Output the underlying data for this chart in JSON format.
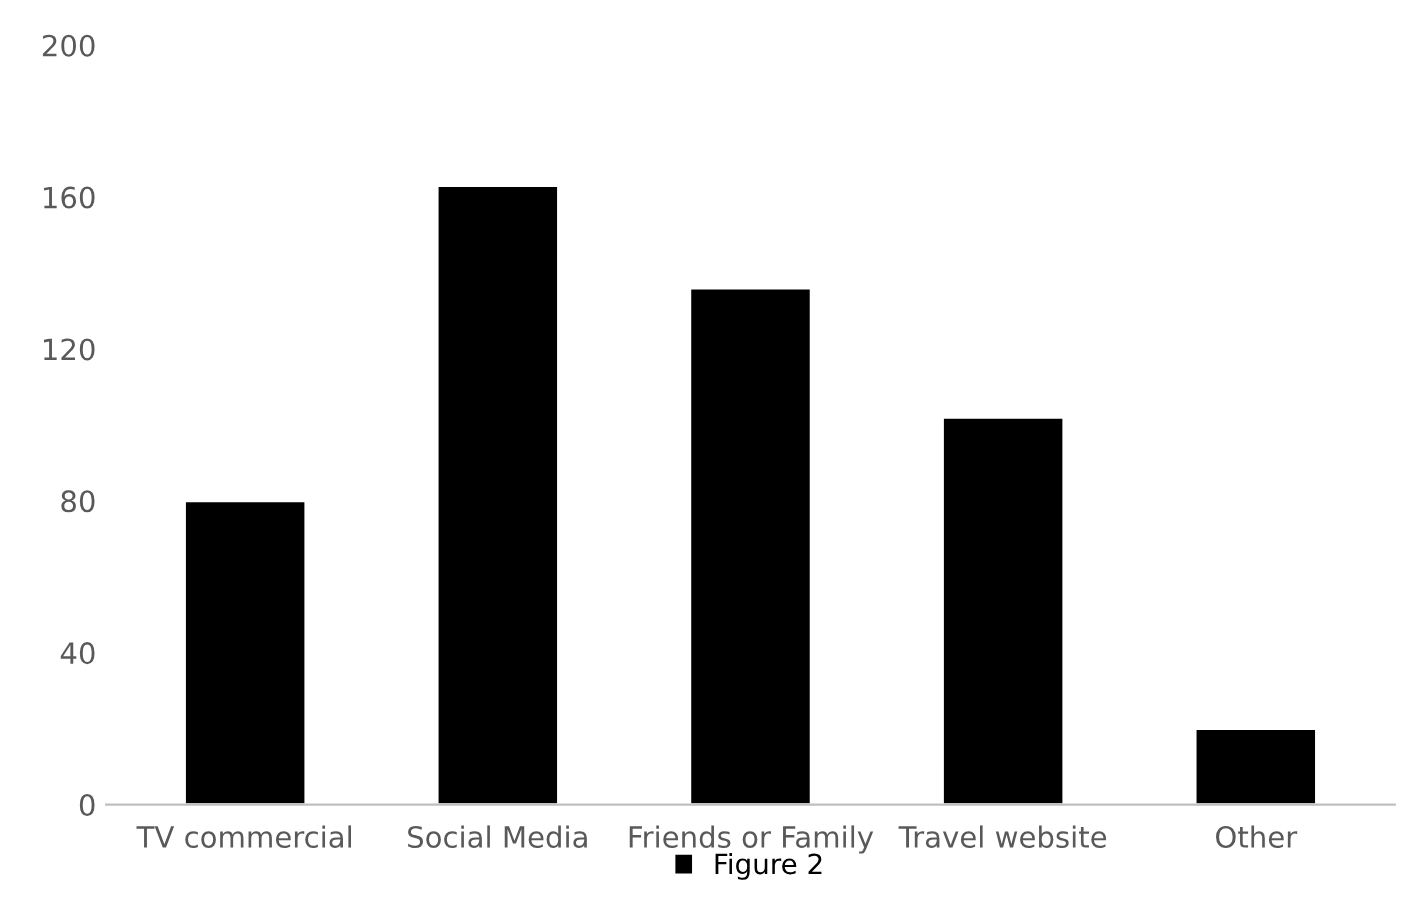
{
  "chart_data": {
    "type": "bar",
    "categories": [
      "TV commercial",
      "Social Media",
      "Friends or Family",
      "Travel website",
      "Other"
    ],
    "series": [
      {
        "name": "Figure 2",
        "color": "#000000",
        "values": [
          80,
          163,
          136,
          102,
          20
        ]
      }
    ],
    "ylim": [
      0,
      200
    ],
    "yticks": [
      0,
      40,
      80,
      120,
      160,
      200
    ],
    "grid": false,
    "legend": "bottom"
  }
}
